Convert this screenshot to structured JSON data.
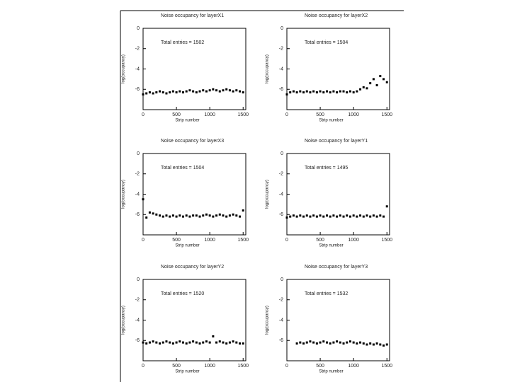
{
  "chart_data": [
    {
      "type": "scatter",
      "title": "Noise occupancy for layerX1",
      "annotation": "Total entries = 1502",
      "x_label": "Strip number",
      "y_label": "log(occupancy)",
      "xlim": [
        0,
        1540
      ],
      "xticks": [
        0,
        500,
        1000,
        1500
      ],
      "ylim": [
        -8,
        0
      ],
      "yticks": [
        0,
        -2,
        -4,
        -6
      ],
      "color": "#000000",
      "x": [
        0,
        50,
        100,
        150,
        200,
        250,
        300,
        350,
        400,
        450,
        500,
        550,
        600,
        650,
        700,
        750,
        800,
        850,
        900,
        950,
        1000,
        1050,
        1100,
        1150,
        1200,
        1250,
        1300,
        1350,
        1400,
        1450,
        1500
      ],
      "values": [
        -6.5,
        -6.4,
        -6.3,
        -6.4,
        -6.3,
        -6.2,
        -6.3,
        -6.4,
        -6.3,
        -6.2,
        -6.3,
        -6.2,
        -6.3,
        -6.2,
        -6.1,
        -6.2,
        -6.3,
        -6.2,
        -6.1,
        -6.2,
        -6.1,
        -6.0,
        -6.1,
        -6.2,
        -6.1,
        -6.0,
        -6.1,
        -6.2,
        -6.1,
        -6.2,
        -6.3
      ]
    },
    {
      "type": "scatter",
      "title": "Noise occupancy for layerX2",
      "annotation": "Total entries = 1504",
      "x_label": "Strip number",
      "y_label": "log(occupancy)",
      "xlim": [
        0,
        1540
      ],
      "xticks": [
        0,
        500,
        1000,
        1500
      ],
      "ylim": [
        -8,
        0
      ],
      "yticks": [
        0,
        -2,
        -4,
        -6
      ],
      "color": "#000000",
      "x": [
        0,
        50,
        100,
        150,
        200,
        250,
        300,
        350,
        400,
        450,
        500,
        550,
        600,
        650,
        700,
        750,
        800,
        850,
        900,
        950,
        1000,
        1050,
        1100,
        1150,
        1200,
        1250,
        1300,
        1350,
        1400,
        1450,
        1500
      ],
      "values": [
        -6.5,
        -6.3,
        -6.2,
        -6.3,
        -6.2,
        -6.3,
        -6.2,
        -6.3,
        -6.2,
        -6.3,
        -6.2,
        -6.3,
        -6.2,
        -6.3,
        -6.2,
        -6.3,
        -6.2,
        -6.2,
        -6.3,
        -6.2,
        -6.3,
        -6.2,
        -6.0,
        -5.8,
        -5.9,
        -5.4,
        -5.0,
        -5.6,
        -4.7,
        -5.0,
        -5.3
      ]
    },
    {
      "type": "scatter",
      "title": "Noise occupancy for layerX3",
      "annotation": "Total entries = 1504",
      "x_label": "Strip number",
      "y_label": "log(occupancy)",
      "xlim": [
        0,
        1540
      ],
      "xticks": [
        0,
        500,
        1000,
        1500
      ],
      "ylim": [
        -8,
        0
      ],
      "yticks": [
        0,
        -2,
        -4,
        -6
      ],
      "color": "#000000",
      "x": [
        0,
        50,
        100,
        150,
        200,
        250,
        300,
        350,
        400,
        450,
        500,
        550,
        600,
        650,
        700,
        750,
        800,
        850,
        900,
        950,
        1000,
        1050,
        1100,
        1150,
        1200,
        1250,
        1300,
        1350,
        1400,
        1450,
        1500
      ],
      "values": [
        -4.5,
        -6.3,
        -5.8,
        -5.9,
        -6.0,
        -6.1,
        -6.2,
        -6.1,
        -6.2,
        -6.1,
        -6.2,
        -6.1,
        -6.2,
        -6.1,
        -6.2,
        -6.1,
        -6.1,
        -6.2,
        -6.1,
        -6.0,
        -6.1,
        -6.2,
        -6.1,
        -6.0,
        -6.1,
        -6.2,
        -6.1,
        -6.0,
        -6.1,
        -6.2,
        -5.6
      ]
    },
    {
      "type": "scatter",
      "title": "Noise occupancy for layerY1",
      "annotation": "Total entries = 1495",
      "x_label": "Strip number",
      "y_label": "log(occupancy)",
      "xlim": [
        0,
        1540
      ],
      "xticks": [
        0,
        500,
        1000,
        1500
      ],
      "ylim": [
        -8,
        0
      ],
      "yticks": [
        0,
        -2,
        -4,
        -6
      ],
      "color": "#000000",
      "x": [
        0,
        50,
        100,
        150,
        200,
        250,
        300,
        350,
        400,
        450,
        500,
        550,
        600,
        650,
        700,
        750,
        800,
        850,
        900,
        950,
        1000,
        1050,
        1100,
        1150,
        1200,
        1250,
        1300,
        1350,
        1400,
        1450,
        1500
      ],
      "values": [
        -6.3,
        -6.2,
        -6.1,
        -6.2,
        -6.1,
        -6.2,
        -6.1,
        -6.2,
        -6.1,
        -6.2,
        -6.1,
        -6.2,
        -6.1,
        -6.2,
        -6.1,
        -6.2,
        -6.1,
        -6.2,
        -6.1,
        -6.2,
        -6.1,
        -6.2,
        -6.1,
        -6.2,
        -6.1,
        -6.2,
        -6.1,
        -6.2,
        -6.1,
        -6.2,
        -5.2
      ]
    },
    {
      "type": "scatter",
      "title": "Noise occupancy for layerY2",
      "annotation": "Total entries = 1520",
      "x_label": "Strip number",
      "y_label": "log(occupancy)",
      "xlim": [
        0,
        1540
      ],
      "xticks": [
        0,
        500,
        1000,
        1500
      ],
      "ylim": [
        -8,
        0
      ],
      "yticks": [
        0,
        -2,
        -4,
        -6
      ],
      "color": "#000000",
      "x": [
        0,
        50,
        100,
        150,
        200,
        250,
        300,
        350,
        400,
        450,
        500,
        550,
        600,
        650,
        700,
        750,
        800,
        850,
        900,
        950,
        1000,
        1050,
        1100,
        1150,
        1200,
        1250,
        1300,
        1350,
        1400,
        1450,
        1500
      ],
      "values": [
        -6.2,
        -6.3,
        -6.2,
        -6.1,
        -6.2,
        -6.3,
        -6.2,
        -6.1,
        -6.2,
        -6.3,
        -6.2,
        -6.1,
        -6.2,
        -6.3,
        -6.2,
        -6.1,
        -6.2,
        -6.3,
        -6.2,
        -6.1,
        -6.2,
        -5.6,
        -6.2,
        -6.1,
        -6.2,
        -6.3,
        -6.2,
        -6.1,
        -6.2,
        -6.3,
        -6.3
      ]
    },
    {
      "type": "scatter",
      "title": "Noise occupancy for layerY3",
      "annotation": "Total entries = 1532",
      "x_label": "Strip number",
      "y_label": "log(occupancy)",
      "xlim": [
        0,
        1540
      ],
      "xticks": [
        0,
        500,
        1000,
        1500
      ],
      "ylim": [
        -8,
        0
      ],
      "yticks": [
        0,
        -2,
        -4,
        -6
      ],
      "color": "#000000",
      "x": [
        150,
        200,
        250,
        300,
        350,
        400,
        450,
        500,
        550,
        600,
        650,
        700,
        750,
        800,
        850,
        900,
        950,
        1000,
        1050,
        1100,
        1150,
        1200,
        1250,
        1300,
        1350,
        1400,
        1450,
        1500
      ],
      "values": [
        -6.3,
        -6.2,
        -6.3,
        -6.2,
        -6.1,
        -6.2,
        -6.3,
        -6.2,
        -6.1,
        -6.2,
        -6.3,
        -6.2,
        -6.1,
        -6.2,
        -6.3,
        -6.2,
        -6.1,
        -6.2,
        -6.3,
        -6.2,
        -6.3,
        -6.4,
        -6.3,
        -6.4,
        -6.3,
        -6.4,
        -6.5,
        -6.4
      ]
    }
  ]
}
